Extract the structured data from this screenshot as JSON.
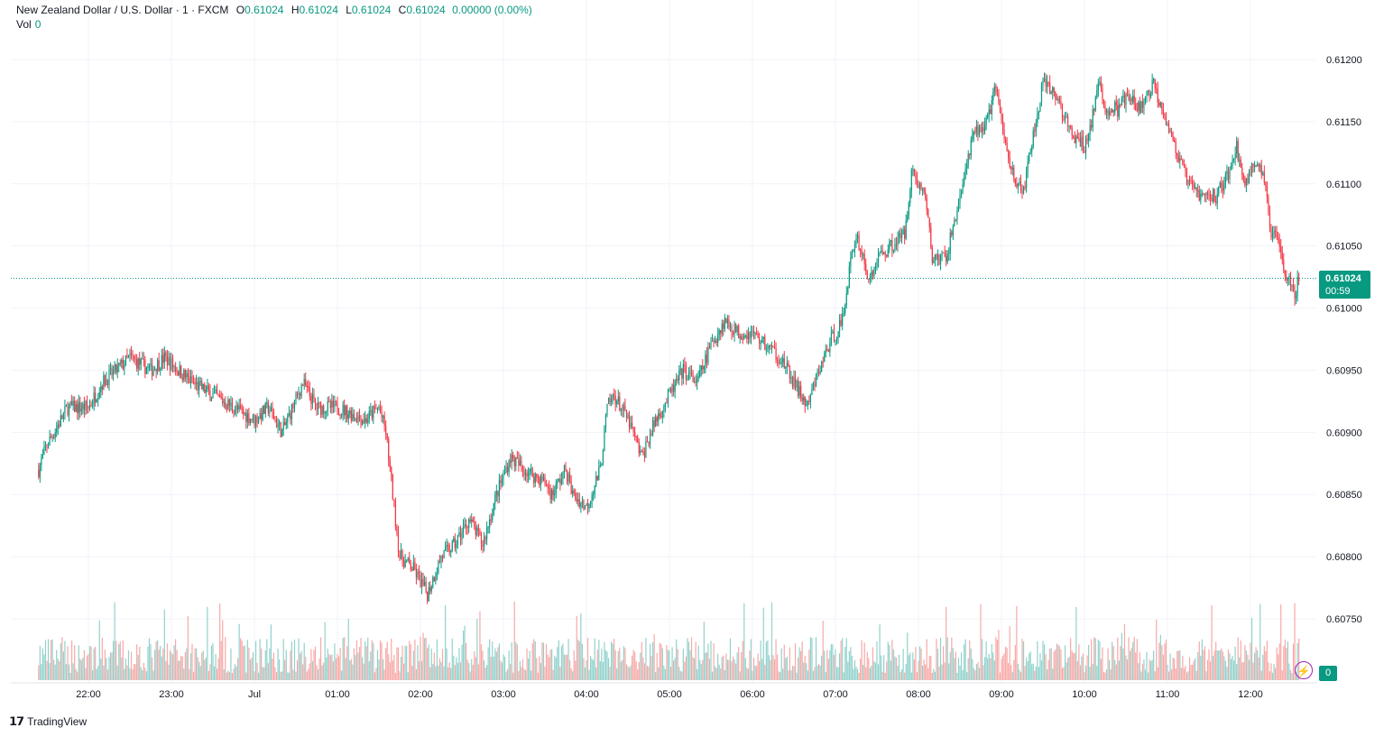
{
  "legend": {
    "symbol": "New Zealand Dollar / U.S. Dollar · 1 · FXCM",
    "open_label": "O",
    "open": "0.61024",
    "high_label": "H",
    "high": "0.61024",
    "low_label": "L",
    "low": "0.61024",
    "close_label": "C",
    "close": "0.61024",
    "change": "0.00000 (0.00%)",
    "vol_label": "Vol",
    "vol_value": "0"
  },
  "price_tag": {
    "price": "0.61024",
    "countdown": "00:59"
  },
  "volume_tag": "0",
  "branding": {
    "name": "TradingView"
  },
  "colors": {
    "up": "#089981",
    "down": "#f23645",
    "up_volume": "#92d2cc",
    "down_volume": "#f7a9a7",
    "grid": "#f0f3fa"
  },
  "chart_data": {
    "type": "candlestick",
    "title": "New Zealand Dollar / U.S. Dollar · 1 · FXCM",
    "interval": "1",
    "current_price": 0.61024,
    "y_ticks": [
      "0.60750",
      "0.60800",
      "0.60850",
      "0.60900",
      "0.60950",
      "0.61000",
      "0.61050",
      "0.61100",
      "0.61150",
      "0.61200"
    ],
    "x_ticks": [
      "22:00",
      "23:00",
      "Jul",
      "01:00",
      "02:00",
      "03:00",
      "04:00",
      "05:00",
      "06:00",
      "07:00",
      "08:00",
      "09:00",
      "10:00",
      "11:00",
      "12:00"
    ],
    "ylim": [
      0.607,
      0.6123
    ],
    "grid": true,
    "price_path": [
      {
        "t": "21:24",
        "p": 0.6087
      },
      {
        "t": "21:30",
        "p": 0.6089
      },
      {
        "t": "21:45",
        "p": 0.6092
      },
      {
        "t": "22:00",
        "p": 0.6092
      },
      {
        "t": "22:10",
        "p": 0.6094
      },
      {
        "t": "22:30",
        "p": 0.6096
      },
      {
        "t": "22:45",
        "p": 0.6095
      },
      {
        "t": "22:55",
        "p": 0.6096
      },
      {
        "t": "23:15",
        "p": 0.6094
      },
      {
        "t": "23:30",
        "p": 0.6093
      },
      {
        "t": "23:45",
        "p": 0.6092
      },
      {
        "t": "00:00",
        "p": 0.6091
      },
      {
        "t": "00:10",
        "p": 0.6092
      },
      {
        "t": "00:20",
        "p": 0.609
      },
      {
        "t": "00:35",
        "p": 0.6094
      },
      {
        "t": "00:45",
        "p": 0.6092
      },
      {
        "t": "01:00",
        "p": 0.6092
      },
      {
        "t": "01:20",
        "p": 0.6091
      },
      {
        "t": "01:30",
        "p": 0.6092
      },
      {
        "t": "01:35",
        "p": 0.609
      },
      {
        "t": "01:40",
        "p": 0.6085
      },
      {
        "t": "01:45",
        "p": 0.608
      },
      {
        "t": "01:55",
        "p": 0.6079
      },
      {
        "t": "02:05",
        "p": 0.6077
      },
      {
        "t": "02:15",
        "p": 0.608
      },
      {
        "t": "02:25",
        "p": 0.6081
      },
      {
        "t": "02:35",
        "p": 0.6083
      },
      {
        "t": "02:45",
        "p": 0.6081
      },
      {
        "t": "02:55",
        "p": 0.6085
      },
      {
        "t": "03:05",
        "p": 0.6088
      },
      {
        "t": "03:15",
        "p": 0.6087
      },
      {
        "t": "03:30",
        "p": 0.6086
      },
      {
        "t": "03:35",
        "p": 0.6085
      },
      {
        "t": "03:45",
        "p": 0.6087
      },
      {
        "t": "03:50",
        "p": 0.6085
      },
      {
        "t": "04:00",
        "p": 0.6084
      },
      {
        "t": "04:10",
        "p": 0.6087
      },
      {
        "t": "04:15",
        "p": 0.6092
      },
      {
        "t": "04:20",
        "p": 0.6093
      },
      {
        "t": "04:30",
        "p": 0.6091
      },
      {
        "t": "04:40",
        "p": 0.6088
      },
      {
        "t": "04:50",
        "p": 0.6091
      },
      {
        "t": "05:00",
        "p": 0.6093
      },
      {
        "t": "05:10",
        "p": 0.6095
      },
      {
        "t": "05:20",
        "p": 0.6094
      },
      {
        "t": "05:30",
        "p": 0.6097
      },
      {
        "t": "05:40",
        "p": 0.6099
      },
      {
        "t": "05:50",
        "p": 0.6098
      },
      {
        "t": "06:00",
        "p": 0.6098
      },
      {
        "t": "06:10",
        "p": 0.6097
      },
      {
        "t": "06:20",
        "p": 0.6096
      },
      {
        "t": "06:30",
        "p": 0.6094
      },
      {
        "t": "06:40",
        "p": 0.6092
      },
      {
        "t": "06:45",
        "p": 0.6094
      },
      {
        "t": "06:55",
        "p": 0.6097
      },
      {
        "t": "07:05",
        "p": 0.6099
      },
      {
        "t": "07:10",
        "p": 0.6103
      },
      {
        "t": "07:15",
        "p": 0.6106
      },
      {
        "t": "07:20",
        "p": 0.6104
      },
      {
        "t": "07:25",
        "p": 0.6102
      },
      {
        "t": "07:30",
        "p": 0.6104
      },
      {
        "t": "07:40",
        "p": 0.6105
      },
      {
        "t": "07:50",
        "p": 0.6106
      },
      {
        "t": "07:55",
        "p": 0.6111
      },
      {
        "t": "08:05",
        "p": 0.6109
      },
      {
        "t": "08:10",
        "p": 0.6104
      },
      {
        "t": "08:20",
        "p": 0.6104
      },
      {
        "t": "08:30",
        "p": 0.6109
      },
      {
        "t": "08:40",
        "p": 0.6114
      },
      {
        "t": "08:50",
        "p": 0.6115
      },
      {
        "t": "08:55",
        "p": 0.6118
      },
      {
        "t": "09:00",
        "p": 0.6115
      },
      {
        "t": "09:05",
        "p": 0.6112
      },
      {
        "t": "09:15",
        "p": 0.6109
      },
      {
        "t": "09:25",
        "p": 0.6115
      },
      {
        "t": "09:30",
        "p": 0.6118
      },
      {
        "t": "09:40",
        "p": 0.6117
      },
      {
        "t": "09:50",
        "p": 0.6114
      },
      {
        "t": "10:00",
        "p": 0.6113
      },
      {
        "t": "10:05",
        "p": 0.6115
      },
      {
        "t": "10:10",
        "p": 0.6118
      },
      {
        "t": "10:15",
        "p": 0.6116
      },
      {
        "t": "10:25",
        "p": 0.6116
      },
      {
        "t": "10:30",
        "p": 0.6117
      },
      {
        "t": "10:40",
        "p": 0.6116
      },
      {
        "t": "10:50",
        "p": 0.6118
      },
      {
        "t": "11:00",
        "p": 0.6115
      },
      {
        "t": "11:05",
        "p": 0.6113
      },
      {
        "t": "11:15",
        "p": 0.611
      },
      {
        "t": "11:25",
        "p": 0.6109
      },
      {
        "t": "11:35",
        "p": 0.6109
      },
      {
        "t": "11:45",
        "p": 0.6111
      },
      {
        "t": "11:50",
        "p": 0.6113
      },
      {
        "t": "11:55",
        "p": 0.611
      },
      {
        "t": "12:05",
        "p": 0.6112
      },
      {
        "t": "12:10",
        "p": 0.611
      },
      {
        "t": "12:15",
        "p": 0.6106
      },
      {
        "t": "12:20",
        "p": 0.6106
      },
      {
        "t": "12:25",
        "p": 0.6103
      },
      {
        "t": "12:30",
        "p": 0.6102
      },
      {
        "t": "12:32",
        "p": 0.6101
      },
      {
        "t": "12:35",
        "p": 0.61024
      }
    ]
  }
}
